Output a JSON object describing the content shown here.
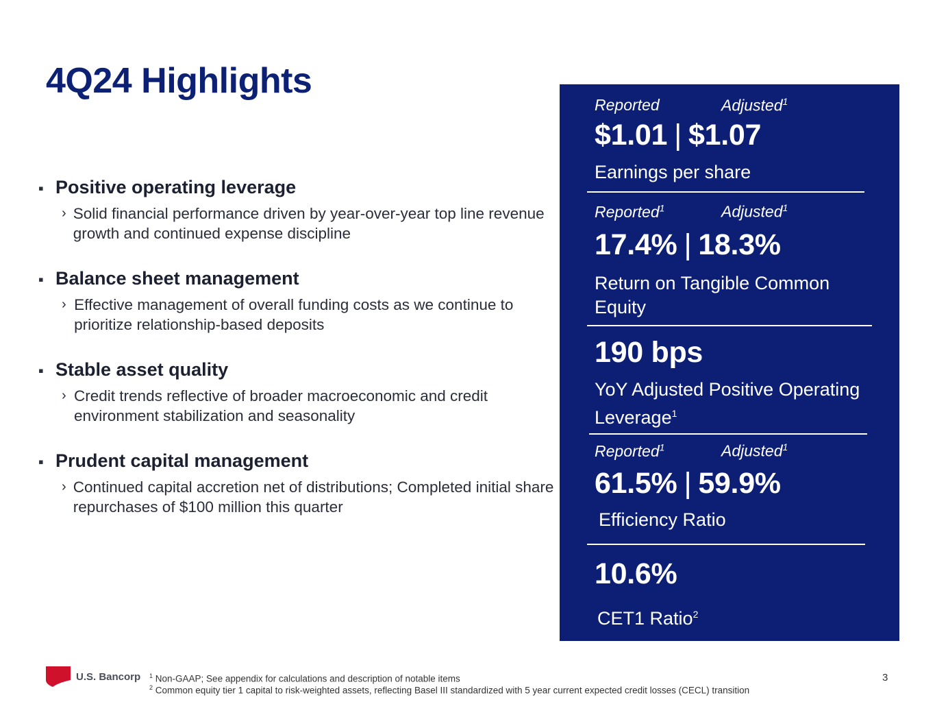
{
  "title": "4Q24 Highlights",
  "bullets": [
    {
      "title": "Positive operating leverage",
      "detail": "Solid financial performance driven by year-over-year top line revenue growth and continued expense discipline"
    },
    {
      "title": "Balance sheet management",
      "detail": "Effective management of overall funding costs as we continue to prioritize relationship-based deposits"
    },
    {
      "title": "Stable asset quality",
      "detail": "Credit trends reflective of broader macroeconomic and credit environment stabilization and seasonality"
    },
    {
      "title": "Prudent capital management",
      "detail": "Continued capital accretion net of distributions; Completed initial share repurchases of $100 million this quarter"
    }
  ],
  "bullet_marker": "▪",
  "sub_marker": "›",
  "metrics": {
    "eps": {
      "label_reported": "Reported",
      "label_adjusted": "Adjusted",
      "adjusted_note": "1",
      "reported": "$1.01",
      "separator": "|",
      "adjusted": "$1.07",
      "description": "Earnings per share"
    },
    "rotce": {
      "label_reported": "Reported",
      "reported_note": "1",
      "label_adjusted": "Adjusted",
      "adjusted_note": "1",
      "reported": "17.4%",
      "separator": "|",
      "adjusted": "18.3%",
      "description": "Return on Tangible Common Equity"
    },
    "leverage": {
      "value": "190 bps",
      "description": "YoY Adjusted Positive Operating Leverage",
      "note": "1"
    },
    "efficiency": {
      "label_reported": "Reported",
      "reported_note": "1",
      "label_adjusted": "Adjusted",
      "adjusted_note": "1",
      "reported": "61.5%",
      "separator": "|",
      "adjusted": "59.9%",
      "description": "Efficiency Ratio"
    },
    "cet1": {
      "value": "10.6%",
      "description": "CET1 Ratio",
      "note": "2"
    }
  },
  "footer": {
    "logo_text": "U.S. Bancorp",
    "footnote1_marker": "1",
    "footnote1": "Non-GAAP; See appendix for calculations and description of notable items",
    "footnote2_marker": "2",
    "footnote2": "Common equity tier 1 capital to risk-weighted assets, reflecting Basel III standardized with 5 year current expected credit losses (CECL) transition",
    "page_number": "3"
  },
  "colors": {
    "panel": "#0c1f74",
    "title": "#0c2074",
    "logo_red": "#d0112b"
  }
}
